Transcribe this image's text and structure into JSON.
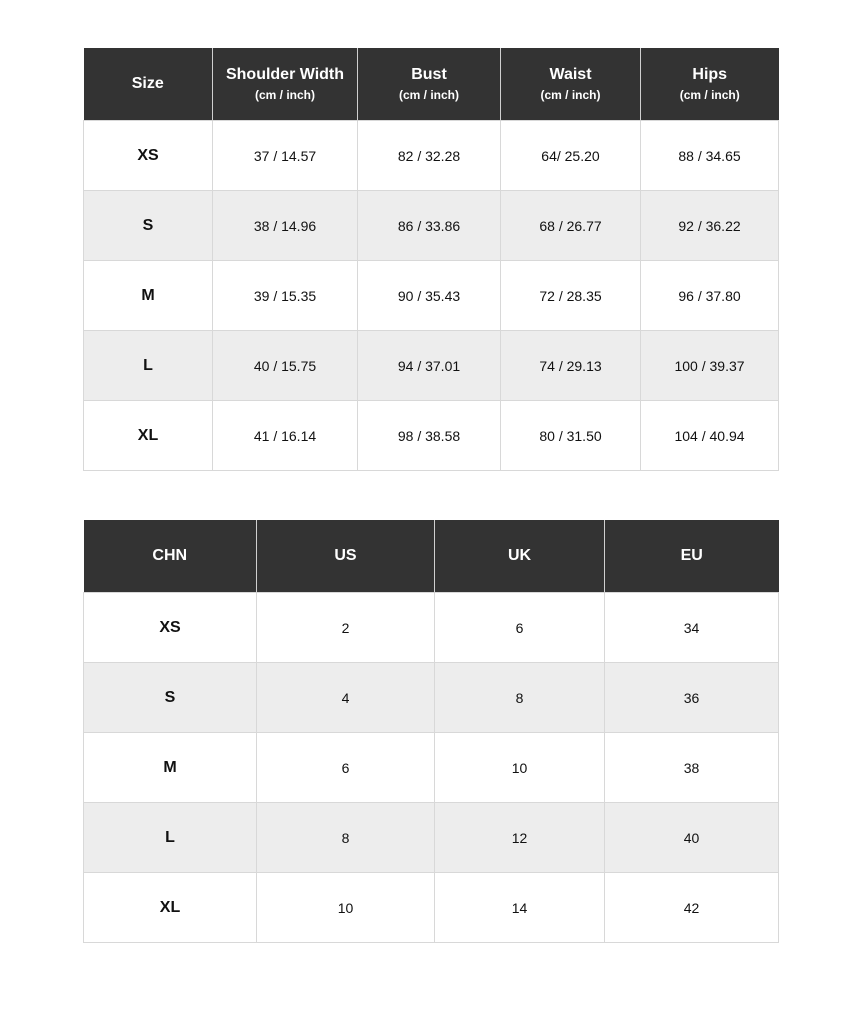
{
  "measurements_table": {
    "headers": [
      {
        "label": "Size",
        "unit": ""
      },
      {
        "label": "Shoulder Width",
        "unit": "(cm / inch)"
      },
      {
        "label": "Bust",
        "unit": "(cm / inch)"
      },
      {
        "label": "Waist",
        "unit": "(cm / inch)"
      },
      {
        "label": "Hips",
        "unit": "(cm / inch)"
      }
    ],
    "rows": [
      [
        "XS",
        "37 / 14.57",
        "82 / 32.28",
        "64/ 25.20",
        "88 / 34.65"
      ],
      [
        "S",
        "38 / 14.96",
        "86 / 33.86",
        "68 / 26.77",
        "92 / 36.22"
      ],
      [
        "M",
        "39 / 15.35",
        "90 / 35.43",
        "72 / 28.35",
        "96 / 37.80"
      ],
      [
        "L",
        "40 / 15.75",
        "94 / 37.01",
        "74 / 29.13",
        "100 / 39.37"
      ],
      [
        "XL",
        "41 / 16.14",
        "98 / 38.58",
        "80 / 31.50",
        "104 / 40.94"
      ]
    ]
  },
  "conversion_table": {
    "headers": [
      {
        "label": "CHN",
        "unit": ""
      },
      {
        "label": "US",
        "unit": ""
      },
      {
        "label": "UK",
        "unit": ""
      },
      {
        "label": "EU",
        "unit": ""
      }
    ],
    "rows": [
      [
        "XS",
        "2",
        "6",
        "34"
      ],
      [
        "S",
        "4",
        "8",
        "36"
      ],
      [
        "M",
        "6",
        "10",
        "38"
      ],
      [
        "L",
        "8",
        "12",
        "40"
      ],
      [
        "XL",
        "10",
        "14",
        "42"
      ]
    ]
  },
  "colors": {
    "header_bg": "#333333",
    "alt_row_bg": "#ededed",
    "border": "#d8d8d8"
  }
}
